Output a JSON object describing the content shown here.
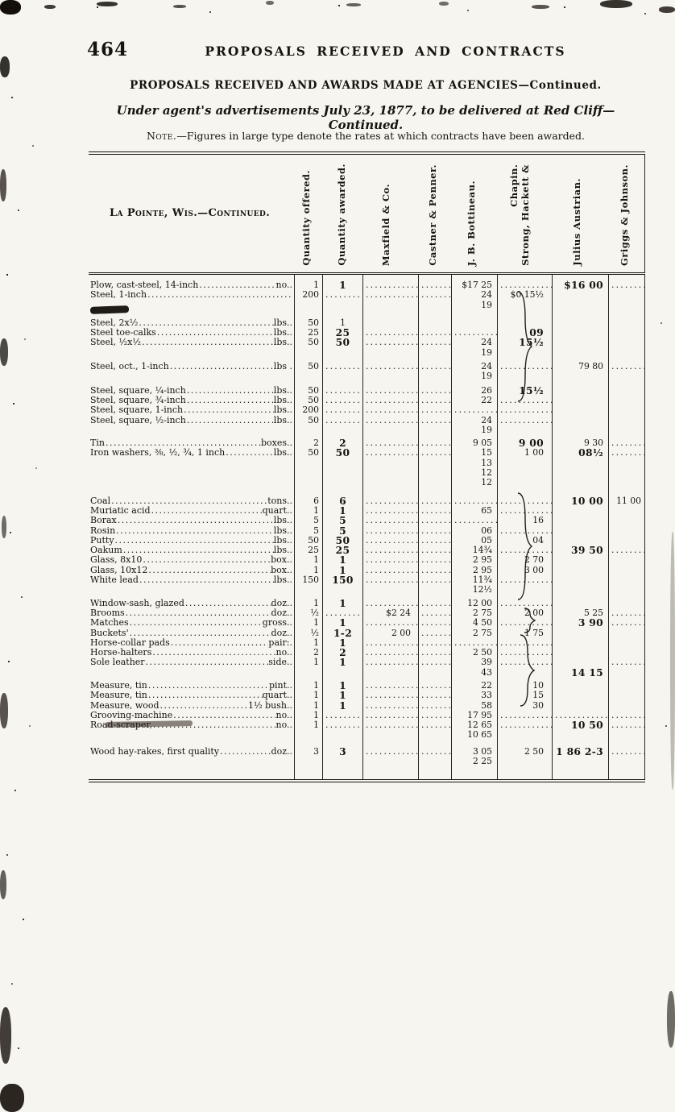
{
  "page": {
    "number": "464",
    "running_title": "PROPOSALS RECEIVED AND CONTRACTS",
    "heading": "PROPOSALS RECEIVED AND AWARDS MADE AT AGENCIES—Continued.",
    "advertisement_line": "Under agent's advertisements July 23, 1877, to be delivered at Red Cliff—Continued.",
    "note_label": "Note.",
    "note_text": "—Figures in large type denote the rates at which contracts have been awarded."
  },
  "table": {
    "stub_header": "La Pointe, Wis.—Continued.",
    "columns": [
      "Quantity offered.",
      "Quantity awarded.",
      "Maxfield & Co.",
      "Castner & Penner.",
      "J. B. Bottineau.",
      "Strong, Hackett &\nChapin.",
      "Julius Austrian.",
      "Griggs & Johnson."
    ],
    "rows": [
      {
        "gap": 7
      },
      {
        "label": "Plow, cast-steel, 14-inch",
        "unit": "no..",
        "cells": [
          "1",
          "1*",
          "..........",
          "......",
          "$17 25",
          "..........",
          "$16 00*",
          "......"
        ]
      },
      {
        "label": "Steel, 1-inch",
        "unit": "",
        "cells": [
          "200",
          "......",
          "..........",
          "......",
          "24\n19",
          "$0 15½",
          "",
          ""
        ]
      },
      {
        "gap": 10
      },
      {
        "label": "Steel, 2x½",
        "unit": "lbs..",
        "cells": [
          "50",
          "1",
          "",
          "",
          "",
          "",
          "",
          ""
        ]
      },
      {
        "label": "Steel toe-calks",
        "unit": "lbs..",
        "cells": [
          "25",
          "25*",
          "..........",
          "......",
          "..........",
          "09*",
          "",
          ""
        ]
      },
      {
        "label": "Steel, ½x½",
        "unit": "lbs..",
        "cells": [
          "50",
          "50*",
          "..........",
          "......",
          "24\n19",
          "15½*",
          "",
          ""
        ]
      },
      {
        "gap": 5
      },
      {
        "label": "Steel, oct., 1-inch",
        "unit": "lbs .",
        "cells": [
          "50",
          "......",
          "..........",
          "......",
          "24\n19",
          "........",
          "79 80",
          "......"
        ]
      },
      {
        "gap": 5
      },
      {
        "label": "Steel, square, ¼-inch",
        "unit": "lbs..",
        "cells": [
          "50",
          "......",
          "..........",
          "......",
          "26",
          "15½*",
          "",
          ""
        ]
      },
      {
        "label": "Steel, square, ¾-inch",
        "unit": "lbs..",
        "cells": [
          "50",
          "......",
          "..........",
          "......",
          "22",
          "........",
          "",
          ""
        ]
      },
      {
        "label": "Steel, square, 1-inch",
        "unit": "lbs..",
        "cells": [
          "200",
          "......",
          "..........",
          "......",
          "..........",
          "........",
          "",
          ""
        ]
      },
      {
        "label": "Steel, square, ½-inch",
        "unit": "lbs..",
        "cells": [
          "50",
          "......",
          "..........",
          "......",
          "24\n19",
          "........",
          "",
          ""
        ]
      },
      {
        "gap": 4
      },
      {
        "label": "Tin",
        "unit": "boxes..",
        "cells": [
          "2",
          "2*",
          "..........",
          "......",
          "9 05",
          "9 00*",
          "9 30",
          "......"
        ]
      },
      {
        "label": "Iron washers, ⅜, ½, ¾, 1 inch",
        "unit": "lbs..",
        "cells": [
          "50",
          "50*",
          "..........",
          "......",
          "15\n13\n12\n12",
          "1 00",
          "08½*",
          "......"
        ]
      },
      {
        "gap": 10
      },
      {
        "label": "Coal",
        "unit": "tons..",
        "cells": [
          "6",
          "6*",
          "..........",
          "......",
          "..........",
          "..........",
          "10 00*",
          "11 00"
        ]
      },
      {
        "label": "Muriatic acid",
        "unit": "quart..",
        "cells": [
          "1",
          "1*",
          "..........",
          "......",
          "65",
          "........",
          "",
          ""
        ]
      },
      {
        "label": "Borax",
        "unit": "lbs..",
        "cells": [
          "5",
          "5*",
          "..........",
          "......",
          "........",
          "16",
          "",
          ""
        ]
      },
      {
        "label": "Rosin",
        "unit": "lbs..",
        "cells": [
          "5",
          "5*",
          "..........",
          "......",
          "06",
          "........",
          "",
          ""
        ]
      },
      {
        "label": "Putty",
        "unit": "lbs..",
        "cells": [
          "50",
          "50*",
          "..........",
          "......",
          "05",
          "04",
          "",
          ""
        ]
      },
      {
        "label": "Oakum",
        "unit": "lbs..",
        "cells": [
          "25",
          "25*",
          "..........",
          "......",
          "14¾",
          "........",
          "39 50*",
          "......"
        ]
      },
      {
        "label": "Glass, 8x10",
        "unit": "box..",
        "cells": [
          "1",
          "1*",
          "..........",
          "......",
          "2 95",
          "2 70",
          "",
          ""
        ]
      },
      {
        "label": "Glass, 10x12",
        "unit": "box..",
        "cells": [
          "1",
          "1*",
          "..........",
          "......",
          "2 95",
          "3 00",
          "",
          ""
        ]
      },
      {
        "label": "White lead",
        "unit": "lbs..",
        "cells": [
          "150",
          "150*",
          "..........",
          "......",
          "11¾\n12½",
          "........",
          "",
          ""
        ]
      },
      {
        "gap": 4
      },
      {
        "label": "Window-sash, glazed",
        "unit": "doz..",
        "cells": [
          "1",
          "1*",
          "..........",
          "......",
          "12 00",
          "........",
          "",
          ""
        ]
      },
      {
        "label": "Brooms",
        "unit": "doz..",
        "cells": [
          "½",
          "......",
          "$2 24",
          "......",
          "2 75",
          "2 00",
          "5 25",
          "......"
        ]
      },
      {
        "label": "Matches",
        "unit": "gross..",
        "cells": [
          "1",
          "1*",
          "..........",
          "......",
          "4 50",
          "........",
          "3 90*",
          "......"
        ]
      },
      {
        "label": "Buckets'",
        "unit": "doz..",
        "cells": [
          "½",
          "1-2*",
          "2 00",
          "......",
          "2 75",
          "1 75",
          "",
          ""
        ]
      },
      {
        "label": "Horse-collar pads",
        "unit": "pair:.",
        "cells": [
          "1",
          "1*",
          "..........",
          "......",
          "..........",
          "........",
          "",
          ""
        ]
      },
      {
        "label": "Horse-halters",
        "unit": "no..",
        "cells": [
          "2",
          "2*",
          "..........",
          "......",
          "2 50",
          "........",
          "",
          ""
        ]
      },
      {
        "label": "Sole leather",
        "unit": "side..",
        "cells": [
          "1",
          "1*",
          "..........",
          "......",
          "39\n43",
          "........",
          "\n14 15*",
          "\n......"
        ]
      },
      {
        "gap": 4
      },
      {
        "label": "Measure, tin",
        "unit": "pint..",
        "cells": [
          "1",
          "1*",
          "..........",
          "......",
          "22",
          "10",
          "",
          ""
        ]
      },
      {
        "label": "Measure, tin",
        "unit": "quart..",
        "cells": [
          "1",
          "1*",
          "..........",
          "......",
          "33",
          "15",
          "",
          ""
        ]
      },
      {
        "label": "Measure, wood",
        "unit": "1½ bush..",
        "cells": [
          "1",
          "1*",
          "..........",
          "......",
          "58",
          "30",
          "",
          ""
        ]
      },
      {
        "label": "Grooving-machine",
        "unit": "no..",
        "cells": [
          "1",
          "......",
          "..........",
          "......",
          "17 95",
          "..........",
          "..........",
          "......"
        ]
      },
      {
        "label": "Road-scraper,",
        "unit": "no..",
        "cells": [
          "1",
          "......",
          "..........",
          "......",
          "12 65\n10 65",
          "..........",
          "10 50*",
          "......"
        ]
      },
      {
        "gap": 8
      },
      {
        "label": "Wood hay-rakes, first quality",
        "unit": "doz..",
        "cells": [
          "3",
          "3*",
          "..........",
          "......",
          "3 05\n2 25",
          "2 50",
          "1 86 2-3*",
          "......"
        ]
      },
      {
        "gap": 16
      }
    ]
  }
}
